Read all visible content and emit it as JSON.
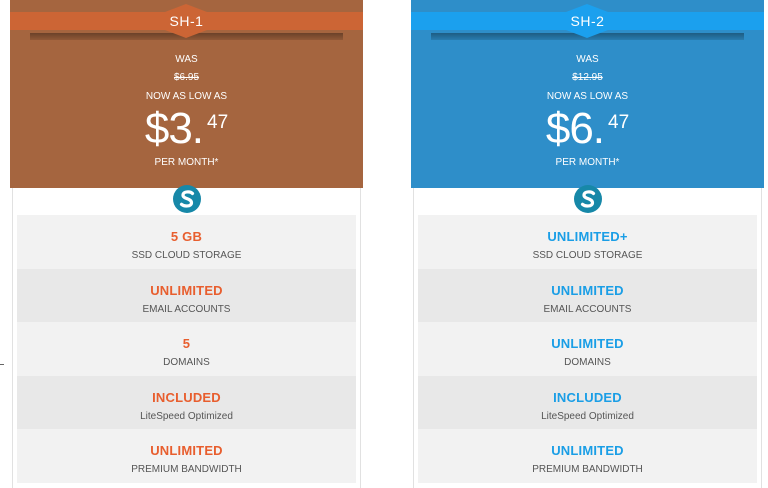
{
  "plans": [
    {
      "name": "SH-1",
      "was_label": "WAS",
      "old_price": "$6.95",
      "now_label": "NOW AS LOW AS",
      "price_main": "$3.",
      "price_cents": "47",
      "period": "PER MONTH*",
      "colors": {
        "header": "#a5653f",
        "ribbon": "#cc6535",
        "accent": "#e85e2e"
      },
      "features": [
        {
          "value": "5 GB",
          "label": "SSD CLOUD STORAGE"
        },
        {
          "value": "UNLIMITED",
          "label": "EMAIL ACCOUNTS"
        },
        {
          "value": "5",
          "label": "DOMAINS"
        },
        {
          "value": "INCLUDED",
          "label": "LiteSpeed Optimized"
        },
        {
          "value": "UNLIMITED",
          "label": "PREMIUM BANDWIDTH"
        }
      ]
    },
    {
      "name": "SH-2",
      "was_label": "WAS",
      "old_price": "$12.95",
      "now_label": "NOW AS LOW AS",
      "price_main": "$6.",
      "price_cents": "47",
      "period": "PER MONTH*",
      "colors": {
        "header": "#2e8ec9",
        "ribbon": "#1ba0ee",
        "accent": "#1a9ee6"
      },
      "features": [
        {
          "value": "UNLIMITED+",
          "label": "SSD CLOUD STORAGE"
        },
        {
          "value": "UNLIMITED",
          "label": "EMAIL ACCOUNTS"
        },
        {
          "value": "UNLIMITED",
          "label": "DOMAINS"
        },
        {
          "value": "INCLUDED",
          "label": "LiteSpeed Optimized"
        },
        {
          "value": "UNLIMITED",
          "label": "PREMIUM BANDWIDTH"
        }
      ]
    }
  ],
  "icons": {
    "logo": "s-logo-icon"
  }
}
